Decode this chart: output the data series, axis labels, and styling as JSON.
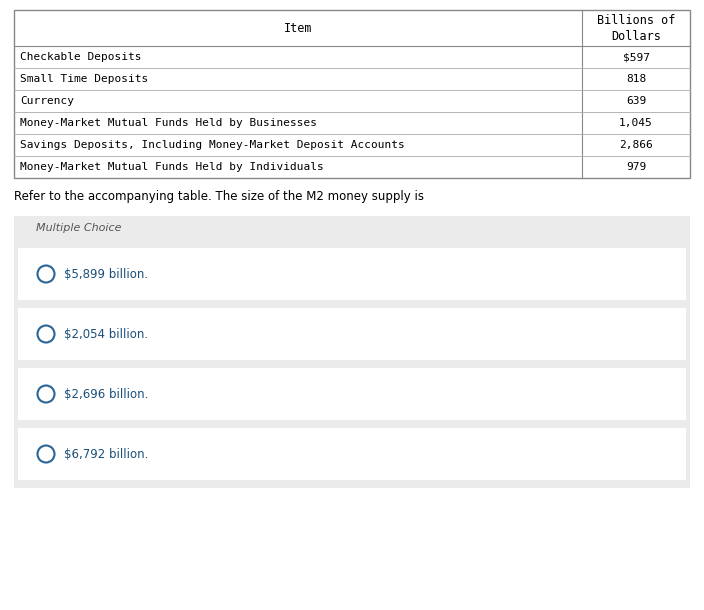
{
  "table_header_col1": "Item",
  "table_header_col2": "Billions of\nDollars",
  "table_rows": [
    [
      "Checkable Deposits",
      "$597"
    ],
    [
      "Small Time Deposits",
      "818"
    ],
    [
      "Currency",
      "639"
    ],
    [
      "Money-Market Mutual Funds Held by Businesses",
      "1,045"
    ],
    [
      "Savings Deposits, Including Money-Market Deposit Accounts",
      "2,866"
    ],
    [
      "Money-Market Mutual Funds Held by Individuals",
      "979"
    ]
  ],
  "question_text": "Refer to the accompanying table. The size of the M2 money supply is",
  "mc_label": "Multiple Choice",
  "choices": [
    "$5,899 billion.",
    "$2,054 billion.",
    "$2,696 billion.",
    "$6,792 billion."
  ],
  "bg_color": "#ffffff",
  "mc_bg_color": "#ebebeb",
  "choice_bg_color": "#f8f8f8",
  "choice_white_bg": "#ffffff",
  "table_border_color": "#888888",
  "row_line_color": "#aaaaaa",
  "text_color": "#000000",
  "choice_text_color": "#1a4f7a",
  "mc_text_color": "#555555",
  "circle_color": "#2a6496",
  "table_font": "monospace",
  "question_font": "DejaVu Sans",
  "fig_width": 7.04,
  "fig_height": 6.1,
  "dpi": 100
}
